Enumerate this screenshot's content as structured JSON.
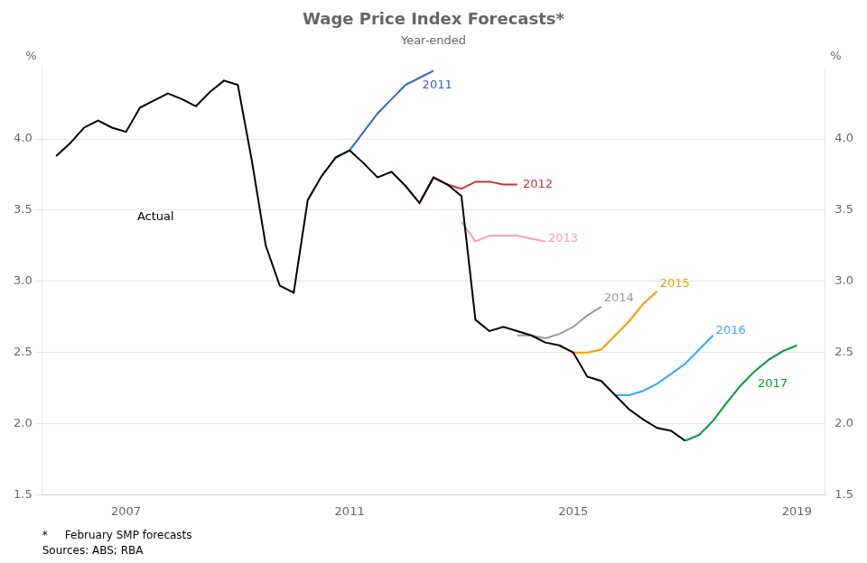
{
  "chart_data": {
    "type": "line",
    "title": "Wage Price Index Forecasts*",
    "subtitle": "Year-ended",
    "ylabel": "%",
    "y2label": "%",
    "footnotes": [
      "*     February SMP forecasts",
      "Sources: ABS; RBA"
    ],
    "xlim": [
      2005.5,
      2019.5
    ],
    "xticks": [
      2007,
      2011,
      2015,
      2019
    ],
    "ylim": [
      1.5,
      4.5
    ],
    "yticks": [
      1.5,
      {
        "value": 2.0,
        "label": "2.0"
      },
      2.5,
      {
        "value": 3.0,
        "label": "3.0"
      },
      3.5,
      {
        "value": 4.0,
        "label": "4.0"
      }
    ],
    "y2lim": [
      1.5,
      4.5
    ],
    "y2ticks": [
      1.5,
      {
        "value": 2.0,
        "label": "2.0"
      },
      2.5,
      {
        "value": 3.0,
        "label": "3.0"
      },
      3.5,
      {
        "value": 4.0,
        "label": "4.0"
      }
    ],
    "grid": true,
    "series": [
      {
        "color": "#000000",
        "x": [
          2005.75,
          2006.0,
          2006.25,
          2006.5,
          2006.75,
          2007.0,
          2007.25,
          2007.5,
          2007.75,
          2008.0,
          2008.25,
          2008.5,
          2008.75,
          2009.0,
          2009.25,
          2009.5,
          2009.75,
          2010.0,
          2010.25,
          2010.5,
          2010.75,
          2011.0,
          2011.25,
          2011.5,
          2011.75,
          2012.0,
          2012.25,
          2012.5,
          2012.75,
          2013.0,
          2013.25,
          2013.5,
          2013.75,
          2014.0,
          2014.25,
          2014.5,
          2014.75,
          2015.0,
          2015.25,
          2015.5,
          2015.75,
          2016.0,
          2016.25,
          2016.5,
          2016.75,
          2017.0
        ],
        "values": [
          3.88,
          3.97,
          4.08,
          4.13,
          4.08,
          4.05,
          4.22,
          4.27,
          4.32,
          4.28,
          4.23,
          4.33,
          4.41,
          4.38,
          3.85,
          3.25,
          2.97,
          2.92,
          3.57,
          3.74,
          3.87,
          3.92,
          3.83,
          3.73,
          3.77,
          3.67,
          3.55,
          3.73,
          3.68,
          3.6,
          2.73,
          2.65,
          2.68,
          2.65,
          2.62,
          2.57,
          2.55,
          2.5,
          2.33,
          2.3,
          2.2,
          2.1,
          2.03,
          1.97,
          1.95,
          1.88
        ]
      },
      {
        "color": "#3366cc",
        "x": [
          2010.75,
          2011.0,
          2011.25,
          2011.5,
          2011.75,
          2012.0,
          2012.25,
          2012.5
        ],
        "values": [
          3.87,
          3.92,
          4.05,
          4.18,
          4.28,
          4.38,
          4.43,
          4.48
        ]
      },
      {
        "color": "#cc3333",
        "x": [
          2011.75,
          2012.0,
          2012.25,
          2012.5,
          2012.75,
          2013.0,
          2013.25,
          2013.5,
          2013.75,
          2014.0
        ],
        "values": [
          3.77,
          3.67,
          3.55,
          3.73,
          3.68,
          3.65,
          3.7,
          3.7,
          3.68,
          3.68
        ]
      },
      {
        "color": "#ff99bb",
        "x": [
          2013.0,
          2013.25,
          2013.5,
          2013.75,
          2014.0,
          2014.25,
          2014.5
        ],
        "values": [
          3.42,
          3.28,
          3.32,
          3.32,
          3.32,
          3.3,
          3.28
        ]
      },
      {
        "color": "#999999",
        "x": [
          2014.0,
          2014.25,
          2014.5,
          2014.75,
          2015.0,
          2015.25,
          2015.5
        ],
        "values": [
          2.62,
          2.62,
          2.6,
          2.63,
          2.68,
          2.76,
          2.82
        ]
      },
      {
        "color": "#ff9900",
        "x": [
          2014.75,
          2015.0,
          2015.25,
          2015.5,
          2015.75,
          2016.0,
          2016.25,
          2016.5
        ],
        "values": [
          2.55,
          2.5,
          2.5,
          2.52,
          2.62,
          2.72,
          2.84,
          2.93
        ]
      },
      {
        "color": "#33aaff",
        "x": [
          2015.75,
          2016.0,
          2016.25,
          2016.5,
          2016.75,
          2017.0,
          2017.25,
          2017.5
        ],
        "values": [
          2.2,
          2.2,
          2.23,
          2.28,
          2.35,
          2.42,
          2.52,
          2.62
        ]
      },
      {
        "color": "#009933",
        "x": [
          2017.0,
          2017.25,
          2017.5,
          2017.75,
          2018.0,
          2018.25,
          2018.5,
          2018.75,
          2019.0
        ],
        "values": [
          1.88,
          1.92,
          2.02,
          2.15,
          2.27,
          2.37,
          2.45,
          2.51,
          2.55
        ]
      }
    ],
    "annotations": [
      {
        "text": "Actual",
        "x": 2007.2,
        "y": 3.45
      },
      {
        "text": "2011",
        "x": 2012.3,
        "y": 4.38,
        "color": "#3366cc"
      },
      {
        "text": "2012",
        "x": 2014.1,
        "y": 3.68,
        "color": "#cc3333"
      },
      {
        "text": "2013",
        "x": 2014.55,
        "y": 3.3,
        "color": "#ff99bb"
      },
      {
        "text": "2014",
        "x": 2015.55,
        "y": 2.88,
        "color": "#999999"
      },
      {
        "text": "2015",
        "x": 2016.55,
        "y": 2.98,
        "color": "#ff9900"
      },
      {
        "text": "2016",
        "x": 2017.55,
        "y": 2.65,
        "color": "#33aaff"
      },
      {
        "text": "2017",
        "x": 2018.3,
        "y": 2.28,
        "color": "#009933"
      }
    ]
  }
}
